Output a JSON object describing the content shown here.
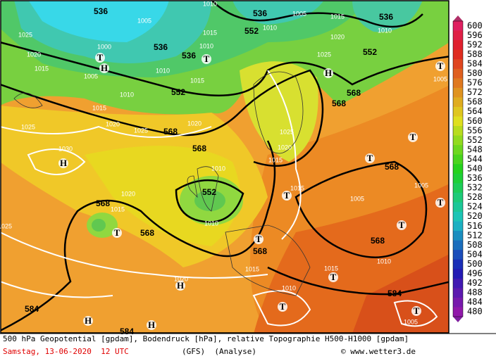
{
  "map": {
    "contour_labels": [
      "536",
      "536",
      "536",
      "552",
      "552",
      "536",
      "536",
      "552",
      "568",
      "568",
      "568",
      "568",
      "552",
      "568",
      "568",
      "568",
      "568",
      "568",
      "584",
      "584",
      "584"
    ],
    "isobar_labels": [
      "1025",
      "1020",
      "1000",
      "1005",
      "1015",
      "1005",
      "1010",
      "1015",
      "1025",
      "1020",
      "1025",
      "1030",
      "1020",
      "1010",
      "1020",
      "1015",
      "1010",
      "1025",
      "1010",
      "1015",
      "1010",
      "1010",
      "1015",
      "1010",
      "1005",
      "1015",
      "1020",
      "1025",
      "1010",
      "1025",
      "1020",
      "1015",
      "1015",
      "1005",
      "1005",
      "1010",
      "1005",
      "1015",
      "1015",
      "1010",
      "1020",
      "1005"
    ],
    "pressure_centers": [
      "T",
      "H",
      "T",
      "H",
      "T",
      "H",
      "T",
      "T",
      "T",
      "T",
      "T",
      "T",
      "T",
      "T",
      "H",
      "T",
      "T",
      "H",
      "H"
    ]
  },
  "colorbar": {
    "levels": [
      600,
      596,
      592,
      588,
      584,
      580,
      576,
      572,
      568,
      564,
      560,
      556,
      552,
      548,
      544,
      540,
      536,
      532,
      528,
      524,
      520,
      516,
      512,
      508,
      504,
      500,
      496,
      492,
      488,
      484,
      480
    ]
  },
  "footer": {
    "description": "500 hPa Geopotential [gpdam], Bodendruck [hPa], relative Topographie H500-H1000 [gpdam]",
    "date": "Samstag, 13-06-2020  12 UTC",
    "model": "(GFS)  (Analyse)",
    "copyright": "© www.wetter3.de"
  }
}
